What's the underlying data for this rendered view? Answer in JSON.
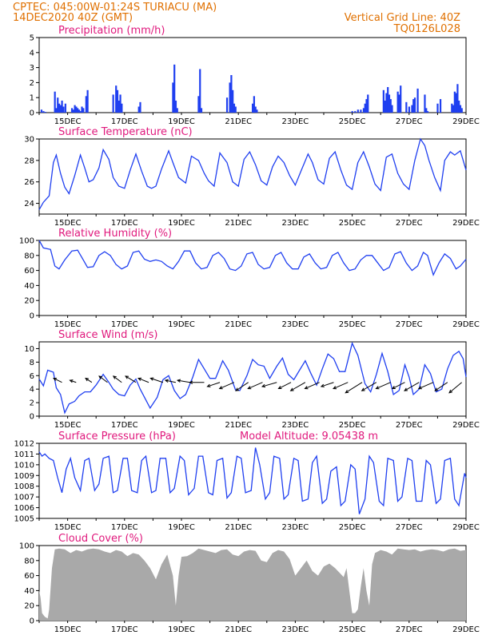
{
  "header": {
    "line1": "CPTEC:   045:00W-01:24S   TURIACU (MA)",
    "line2": "14DEC2020 40Z (GMT)",
    "vgrid": "Vertical Grid Line: 40Z",
    "code": "TQ0126L028"
  },
  "colors": {
    "header": "#e07000",
    "title": "#e0197d",
    "line": "#1f3ff0",
    "bar": "#1f3ff0",
    "cloud": "#a9a9a9",
    "arrow": "#000000"
  },
  "chart_data": [
    {
      "type": "bar",
      "title": "Precipitation (mm/h)",
      "ylim": [
        0,
        5
      ],
      "yticks": [
        0,
        1,
        2,
        3,
        4,
        5
      ],
      "xticks": [
        "15DEC",
        "17DEC",
        "19DEC",
        "21DEC",
        "23DEC",
        "25DEC",
        "27DEC",
        "29DEC"
      ],
      "xlim_days": [
        14.0,
        29.0
      ],
      "x": [
        14.08,
        14.15,
        14.22,
        14.55,
        14.6,
        14.65,
        14.7,
        14.75,
        14.8,
        14.85,
        14.92,
        15.15,
        15.2,
        15.25,
        15.3,
        15.35,
        15.4,
        15.45,
        15.5,
        15.55,
        15.65,
        15.7,
        16.6,
        16.7,
        16.75,
        16.8,
        16.85,
        16.9,
        17.5,
        17.55,
        18.7,
        18.75,
        18.8,
        18.85,
        19.6,
        19.65,
        19.7,
        20.6,
        20.7,
        20.75,
        20.8,
        20.85,
        20.9,
        21.5,
        21.55,
        21.6,
        21.65,
        25.0,
        25.1,
        25.2,
        25.3,
        25.4,
        25.45,
        25.5,
        25.55,
        26.1,
        26.15,
        26.2,
        26.25,
        26.3,
        26.35,
        26.4,
        26.6,
        26.65,
        26.7,
        26.9,
        27.0,
        27.1,
        27.15,
        27.2,
        27.3,
        27.55,
        27.6,
        27.65,
        28.0,
        28.1,
        28.5,
        28.55,
        28.6,
        28.65,
        28.7,
        28.75,
        28.8,
        28.85
      ],
      "values": [
        0.2,
        0.1,
        0.05,
        1.4,
        0.3,
        1.0,
        0.6,
        0.5,
        0.8,
        0.4,
        0.6,
        0.3,
        0.2,
        0.5,
        0.4,
        0.3,
        0.2,
        0.1,
        0.4,
        0.3,
        1.1,
        1.5,
        1.2,
        1.8,
        1.5,
        0.8,
        1.2,
        0.6,
        0.4,
        0.7,
        2.0,
        3.2,
        0.8,
        0.3,
        1.1,
        2.9,
        0.3,
        1.0,
        2.0,
        2.5,
        1.5,
        0.6,
        0.4,
        0.6,
        1.1,
        0.4,
        0.2,
        0.1,
        0.1,
        0.2,
        0.2,
        0.3,
        0.6,
        0.9,
        1.2,
        1.5,
        0.8,
        1.3,
        1.7,
        1.2,
        0.9,
        0.5,
        1.4,
        1.2,
        1.8,
        0.7,
        0.4,
        0.5,
        0.9,
        1.0,
        1.6,
        1.2,
        0.3,
        0.1,
        0.6,
        0.9,
        0.6,
        0.5,
        1.4,
        1.3,
        1.9,
        0.8,
        0.5,
        0.3
      ]
    },
    {
      "type": "line",
      "title": "Surface Temperature (nC)",
      "ylim": [
        23,
        30
      ],
      "yticks": [
        24,
        26,
        28,
        30
      ],
      "xticks": [
        "15DEC",
        "17DEC",
        "19DEC",
        "21DEC",
        "23DEC",
        "25DEC",
        "27DEC",
        "29DEC"
      ],
      "xlim_days": [
        14.0,
        29.0
      ],
      "x": [
        14.0,
        14.15,
        14.35,
        14.5,
        14.6,
        14.75,
        14.9,
        15.05,
        15.25,
        15.45,
        15.6,
        15.75,
        15.9,
        16.1,
        16.25,
        16.45,
        16.6,
        16.8,
        17.0,
        17.2,
        17.4,
        17.6,
        17.8,
        17.95,
        18.1,
        18.3,
        18.55,
        18.7,
        18.9,
        19.15,
        19.35,
        19.6,
        19.8,
        19.95,
        20.15,
        20.35,
        20.6,
        20.8,
        21.0,
        21.2,
        21.4,
        21.6,
        21.8,
        22.0,
        22.2,
        22.4,
        22.6,
        22.8,
        23.0,
        23.2,
        23.45,
        23.6,
        23.8,
        24.0,
        24.2,
        24.4,
        24.6,
        24.8,
        25.0,
        25.2,
        25.4,
        25.6,
        25.8,
        26.0,
        26.2,
        26.4,
        26.6,
        26.8,
        27.0,
        27.2,
        27.4,
        27.55,
        27.7,
        27.9,
        28.1,
        28.25,
        28.45,
        28.6,
        28.8,
        29.0
      ],
      "values": [
        23.4,
        24.1,
        24.7,
        27.8,
        28.5,
        26.8,
        25.5,
        24.9,
        26.6,
        28.5,
        27.3,
        26.0,
        26.2,
        27.3,
        29.0,
        28.1,
        26.4,
        25.6,
        25.4,
        27.1,
        28.6,
        27.0,
        25.6,
        25.4,
        25.6,
        27.2,
        28.9,
        27.8,
        26.4,
        25.9,
        28.4,
        28.0,
        26.8,
        26.1,
        25.6,
        28.7,
        27.8,
        26.0,
        25.6,
        28.1,
        28.8,
        27.6,
        26.1,
        25.7,
        27.4,
        28.4,
        27.8,
        26.6,
        25.7,
        27.0,
        28.6,
        27.8,
        26.2,
        25.8,
        28.2,
        28.8,
        27.1,
        25.7,
        25.3,
        27.8,
        28.8,
        27.4,
        25.8,
        25.2,
        28.3,
        28.6,
        26.8,
        25.8,
        25.3,
        28.0,
        30.0,
        29.4,
        28.0,
        26.4,
        25.2,
        28.0,
        28.8,
        28.5,
        28.9,
        27.1
      ]
    },
    {
      "type": "line",
      "title": "Relative Humidity (%)",
      "ylim": [
        0,
        100
      ],
      "yticks": [
        0,
        20,
        40,
        60,
        80,
        100
      ],
      "xticks": [
        "15DEC",
        "17DEC",
        "19DEC",
        "21DEC",
        "23DEC",
        "25DEC",
        "27DEC",
        "29DEC"
      ],
      "xlim_days": [
        14.0,
        29.0
      ],
      "x": [
        14.0,
        14.15,
        14.4,
        14.55,
        14.7,
        14.9,
        15.15,
        15.35,
        15.55,
        15.7,
        15.9,
        16.1,
        16.3,
        16.5,
        16.7,
        16.9,
        17.1,
        17.3,
        17.5,
        17.7,
        17.9,
        18.1,
        18.3,
        18.5,
        18.7,
        18.9,
        19.1,
        19.3,
        19.5,
        19.7,
        19.9,
        20.1,
        20.3,
        20.5,
        20.7,
        20.9,
        21.1,
        21.3,
        21.5,
        21.7,
        21.9,
        22.1,
        22.3,
        22.5,
        22.7,
        22.9,
        23.1,
        23.3,
        23.5,
        23.7,
        23.9,
        24.1,
        24.3,
        24.5,
        24.7,
        24.9,
        25.1,
        25.3,
        25.5,
        25.7,
        25.9,
        26.1,
        26.3,
        26.5,
        26.7,
        26.9,
        27.1,
        27.3,
        27.5,
        27.65,
        27.85,
        28.05,
        28.25,
        28.45,
        28.65,
        28.8,
        29.0
      ],
      "values": [
        100,
        90,
        88,
        66,
        62,
        74,
        86,
        87,
        74,
        64,
        65,
        80,
        85,
        80,
        68,
        62,
        66,
        84,
        86,
        75,
        72,
        74,
        72,
        66,
        62,
        72,
        86,
        86,
        70,
        62,
        64,
        80,
        84,
        76,
        62,
        60,
        66,
        82,
        84,
        68,
        62,
        64,
        80,
        84,
        70,
        62,
        62,
        78,
        82,
        70,
        62,
        64,
        80,
        84,
        70,
        60,
        62,
        74,
        80,
        80,
        70,
        60,
        64,
        82,
        85,
        70,
        60,
        66,
        84,
        80,
        54,
        70,
        82,
        76,
        62,
        66,
        75
      ]
    },
    {
      "type": "line",
      "title": "Surface Wind (m/s)",
      "ylim": [
        0,
        11
      ],
      "yticks": [
        0,
        2,
        4,
        6,
        8,
        10
      ],
      "xticks": [
        "15DEC",
        "17DEC",
        "19DEC",
        "21DEC",
        "23DEC",
        "25DEC",
        "27DEC",
        "29DEC"
      ],
      "xlim_days": [
        14.0,
        29.0
      ],
      "x": [
        14.0,
        14.15,
        14.3,
        14.5,
        14.6,
        14.75,
        14.9,
        15.05,
        15.25,
        15.4,
        15.6,
        15.8,
        16.0,
        16.25,
        16.45,
        16.6,
        16.8,
        17.0,
        17.2,
        17.4,
        17.55,
        17.7,
        17.9,
        18.15,
        18.35,
        18.55,
        18.75,
        18.95,
        19.15,
        19.4,
        19.6,
        19.8,
        20.0,
        20.2,
        20.45,
        20.65,
        20.9,
        21.05,
        21.3,
        21.5,
        21.7,
        21.9,
        22.1,
        22.35,
        22.55,
        22.75,
        22.95,
        23.15,
        23.35,
        23.55,
        23.75,
        23.95,
        24.15,
        24.35,
        24.55,
        24.75,
        25.0,
        25.2,
        25.45,
        25.65,
        25.85,
        26.05,
        26.25,
        26.45,
        26.65,
        26.85,
        27.0,
        27.15,
        27.35,
        27.55,
        27.75,
        27.95,
        28.15,
        28.35,
        28.55,
        28.75,
        28.9,
        29.0
      ],
      "values": [
        5.5,
        4.5,
        6.8,
        6.5,
        4.2,
        3.2,
        0.5,
        1.8,
        2.2,
        3.0,
        3.6,
        3.6,
        4.6,
        6.2,
        5.0,
        4.0,
        3.2,
        3.0,
        4.6,
        5.5,
        4.0,
        2.8,
        1.2,
        2.8,
        5.4,
        6.0,
        3.8,
        2.6,
        3.2,
        5.8,
        8.4,
        7.0,
        5.6,
        5.6,
        8.2,
        6.8,
        3.9,
        3.8,
        6.0,
        8.4,
        7.6,
        7.4,
        5.6,
        7.4,
        8.6,
        6.2,
        5.4,
        6.8,
        8.2,
        6.3,
        4.6,
        7.0,
        9.2,
        8.5,
        6.6,
        6.6,
        10.8,
        9.0,
        4.8,
        3.6,
        6.2,
        9.3,
        6.6,
        3.2,
        3.8,
        7.6,
        5.8,
        3.2,
        4.0,
        7.6,
        6.3,
        3.6,
        4.0,
        7.0,
        9.0,
        9.6,
        8.5,
        5.8
      ],
      "vectors": {
        "x": [
          14.8,
          15.3,
          15.85,
          16.4,
          16.9,
          17.4,
          17.85,
          18.35,
          18.8,
          19.3,
          19.8,
          20.35,
          20.85,
          21.35,
          21.85,
          22.35,
          22.85,
          23.35,
          23.85,
          24.35,
          24.85,
          25.35,
          25.85,
          26.35,
          26.85,
          27.35,
          27.85,
          28.35,
          28.85
        ],
        "u": [
          -4,
          -3,
          -3,
          -4,
          -4,
          -5,
          -5,
          -6,
          -5,
          -6,
          -7,
          -6,
          -7,
          -6,
          -7,
          -7,
          -6,
          -7,
          -7,
          -6,
          -7,
          -8,
          -7,
          -7,
          -6,
          -7,
          -7,
          -6,
          -6
        ],
        "v": [
          2,
          1,
          2,
          3,
          3,
          3,
          2,
          2,
          1,
          1,
          0,
          -2,
          -3,
          -4,
          -3,
          -2,
          -3,
          -4,
          -3,
          -2,
          -3,
          -5,
          -4,
          -3,
          -3,
          -4,
          -3,
          -4,
          -5
        ]
      }
    },
    {
      "type": "line",
      "title": "Surface Pressure (hPa)",
      "annotation": "Model Altitude: 9.05438 m",
      "ylim": [
        1005,
        1012
      ],
      "yticks": [
        1005,
        1006,
        1007,
        1008,
        1009,
        1010,
        1011,
        1012
      ],
      "xticks": [
        "15DEC",
        "17DEC",
        "19DEC",
        "21DEC",
        "23DEC",
        "25DEC",
        "27DEC",
        "29DEC"
      ],
      "xlim_days": [
        14.0,
        29.0
      ],
      "x": [
        14.0,
        14.1,
        14.2,
        14.35,
        14.5,
        14.65,
        14.8,
        14.95,
        15.1,
        15.25,
        15.45,
        15.6,
        15.75,
        15.95,
        16.1,
        16.25,
        16.45,
        16.6,
        16.75,
        16.95,
        17.1,
        17.25,
        17.45,
        17.6,
        17.75,
        17.95,
        18.1,
        18.25,
        18.45,
        18.6,
        18.75,
        18.95,
        19.1,
        19.25,
        19.45,
        19.6,
        19.75,
        19.95,
        20.1,
        20.25,
        20.45,
        20.6,
        20.75,
        20.95,
        21.1,
        21.25,
        21.45,
        21.6,
        21.75,
        21.95,
        22.1,
        22.25,
        22.45,
        22.6,
        22.75,
        22.95,
        23.1,
        23.25,
        23.45,
        23.6,
        23.75,
        23.95,
        24.1,
        24.25,
        24.45,
        24.6,
        24.75,
        24.95,
        25.1,
        25.25,
        25.45,
        25.6,
        25.75,
        25.95,
        26.1,
        26.25,
        26.45,
        26.6,
        26.75,
        26.95,
        27.1,
        27.25,
        27.45,
        27.6,
        27.75,
        27.95,
        28.1,
        28.25,
        28.45,
        28.6,
        28.75,
        28.95,
        29.0
      ],
      "values": [
        1011.2,
        1010.8,
        1011.0,
        1010.6,
        1010.4,
        1008.8,
        1007.4,
        1009.6,
        1010.6,
        1008.8,
        1007.6,
        1010.4,
        1010.6,
        1007.6,
        1008.2,
        1010.6,
        1010.8,
        1007.4,
        1007.6,
        1010.6,
        1010.6,
        1007.6,
        1007.4,
        1010.4,
        1010.8,
        1007.4,
        1007.6,
        1010.6,
        1010.6,
        1007.4,
        1007.8,
        1010.8,
        1010.4,
        1007.2,
        1007.8,
        1010.8,
        1010.8,
        1007.4,
        1007.2,
        1010.4,
        1010.6,
        1006.9,
        1007.4,
        1010.8,
        1010.6,
        1007.4,
        1007.6,
        1011.6,
        1010.0,
        1006.8,
        1007.4,
        1010.8,
        1010.6,
        1006.8,
        1007.2,
        1010.6,
        1010.4,
        1006.6,
        1006.8,
        1010.2,
        1010.8,
        1006.4,
        1006.8,
        1009.4,
        1009.8,
        1006.2,
        1006.6,
        1010.0,
        1009.6,
        1005.4,
        1006.8,
        1010.8,
        1010.2,
        1006.6,
        1006.2,
        1010.6,
        1010.4,
        1006.6,
        1007.0,
        1010.6,
        1010.4,
        1006.6,
        1006.6,
        1010.4,
        1010.0,
        1006.4,
        1006.8,
        1010.4,
        1010.6,
        1006.8,
        1006.2,
        1009.2,
        1008.8
      ]
    },
    {
      "type": "area",
      "title": "Cloud Cover (%)",
      "ylim": [
        0,
        100
      ],
      "yticks": [
        0,
        20,
        40,
        60,
        80,
        100
      ],
      "xticks": [
        "15DEC",
        "17DEC",
        "19DEC",
        "21DEC",
        "23DEC",
        "25DEC",
        "27DEC",
        "29DEC"
      ],
      "xlim_days": [
        14.0,
        29.0
      ],
      "x": [
        14.0,
        14.05,
        14.1,
        14.2,
        14.3,
        14.35,
        14.45,
        14.55,
        14.7,
        14.9,
        15.1,
        15.3,
        15.5,
        15.7,
        15.9,
        16.1,
        16.3,
        16.5,
        16.7,
        16.9,
        17.1,
        17.3,
        17.5,
        17.7,
        17.9,
        18.1,
        18.3,
        18.5,
        18.7,
        18.75,
        18.8,
        18.9,
        19.0,
        19.2,
        19.4,
        19.6,
        19.8,
        20.0,
        20.2,
        20.4,
        20.6,
        20.8,
        21.0,
        21.2,
        21.4,
        21.6,
        21.8,
        22.0,
        22.2,
        22.4,
        22.6,
        22.8,
        23.0,
        23.2,
        23.4,
        23.6,
        23.8,
        24.0,
        24.2,
        24.4,
        24.6,
        24.7,
        24.8,
        24.9,
        25.0,
        25.1,
        25.2,
        25.3,
        25.4,
        25.5,
        25.6,
        25.7,
        25.8,
        26.0,
        26.2,
        26.4,
        26.6,
        26.8,
        27.0,
        27.2,
        27.4,
        27.6,
        27.8,
        28.0,
        28.2,
        28.4,
        28.6,
        28.8,
        29.0
      ],
      "values": [
        40,
        30,
        10,
        5,
        3,
        15,
        70,
        95,
        96,
        95,
        90,
        94,
        92,
        95,
        96,
        95,
        92,
        90,
        94,
        92,
        86,
        90,
        88,
        80,
        70,
        55,
        75,
        88,
        60,
        40,
        20,
        60,
        85,
        86,
        90,
        96,
        94,
        92,
        90,
        94,
        95,
        88,
        86,
        92,
        94,
        93,
        80,
        78,
        90,
        94,
        92,
        82,
        60,
        70,
        80,
        66,
        60,
        72,
        76,
        70,
        62,
        58,
        70,
        40,
        10,
        10,
        15,
        45,
        70,
        40,
        20,
        75,
        90,
        94,
        92,
        88,
        96,
        95,
        94,
        95,
        92,
        94,
        95,
        94,
        92,
        95,
        96,
        93,
        94
      ]
    }
  ]
}
